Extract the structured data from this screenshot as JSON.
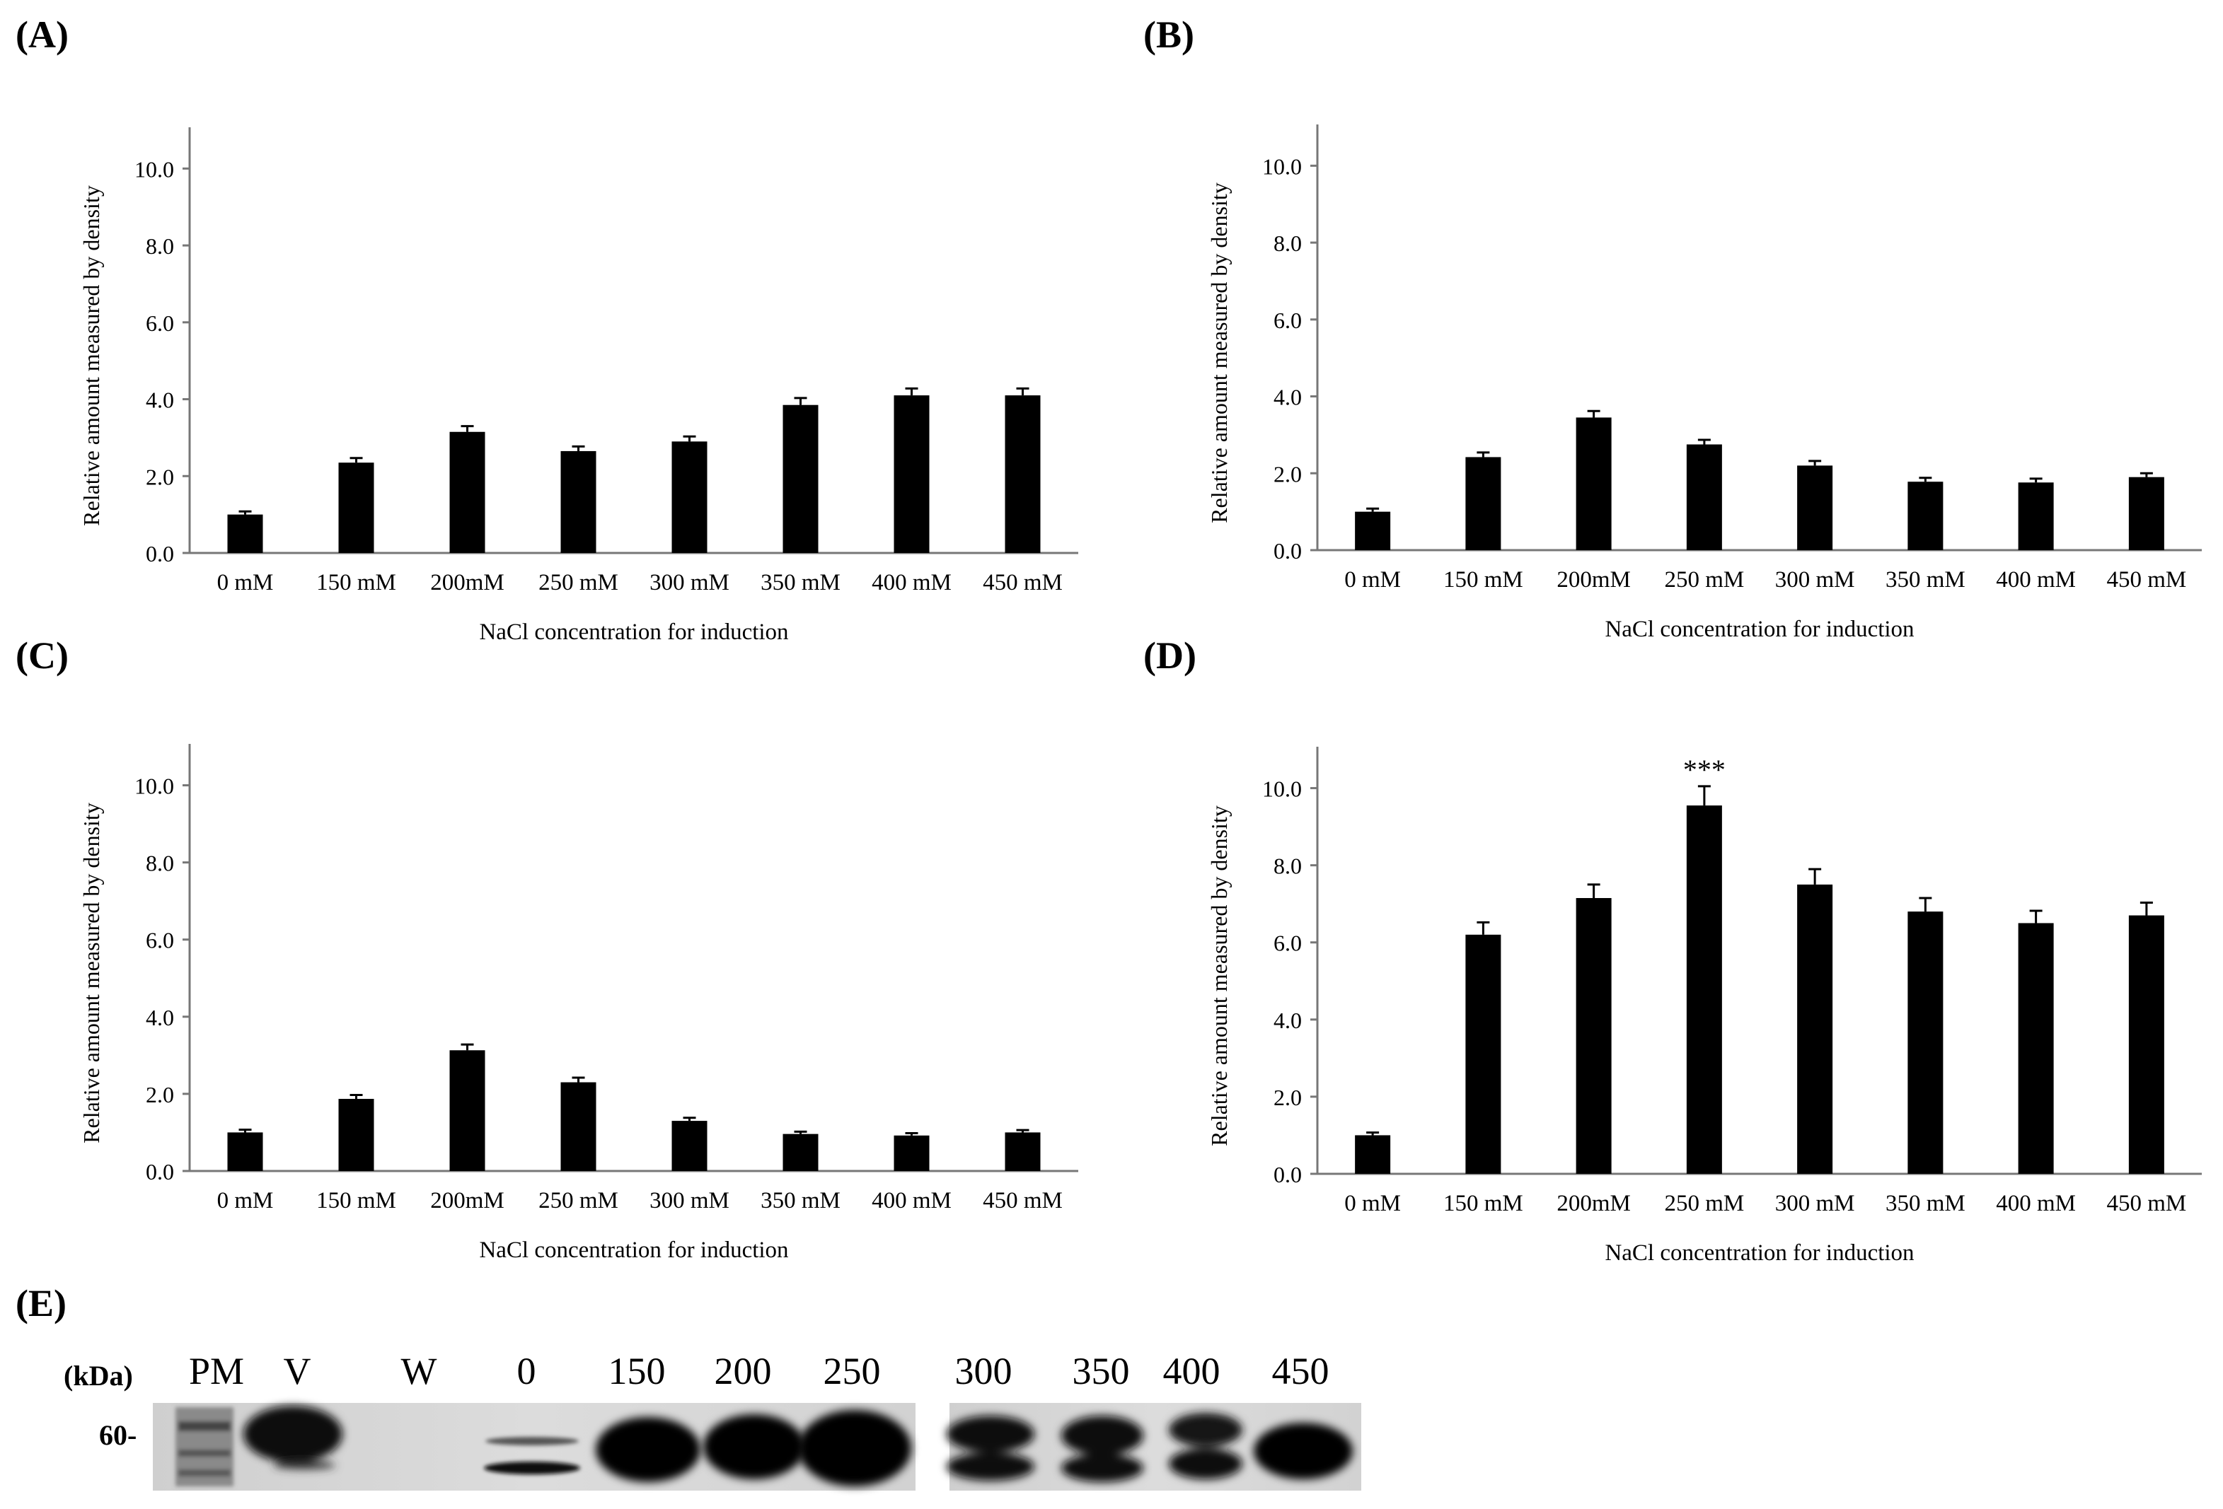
{
  "panels": [
    {
      "id": "A",
      "label": "(A)"
    },
    {
      "id": "B",
      "label": "(B)"
    },
    {
      "id": "C",
      "label": "(C)"
    },
    {
      "id": "D",
      "label": "(D)"
    },
    {
      "id": "E",
      "label": "(E)"
    }
  ],
  "chart_data": [
    {
      "panel": "(A)",
      "type": "bar",
      "categories": [
        "0 mM",
        "150 mM",
        "200mM",
        "250 mM",
        "300 mM",
        "350 mM",
        "400 mM",
        "450 mM"
      ],
      "values": [
        1.0,
        2.35,
        3.15,
        2.65,
        2.9,
        3.85,
        4.1,
        4.1
      ],
      "errors": [
        0.08,
        0.12,
        0.15,
        0.12,
        0.13,
        0.18,
        0.18,
        0.18
      ],
      "xlabel": "NaCl concentration for induction",
      "ylabel": "Relative amount  measured by density",
      "ylim": [
        0,
        11
      ],
      "yticks": [
        "0.0",
        "2.0",
        "4.0",
        "6.0",
        "8.0",
        "10.0"
      ],
      "annotations": []
    },
    {
      "panel": "(B)",
      "type": "bar",
      "categories": [
        "0 mM",
        "150 mM",
        "200mM",
        "250 mM",
        "300 mM",
        "350 mM",
        "400 mM",
        "450 mM"
      ],
      "values": [
        1.0,
        2.42,
        3.45,
        2.75,
        2.2,
        1.78,
        1.76,
        1.9
      ],
      "errors": [
        0.08,
        0.12,
        0.17,
        0.12,
        0.12,
        0.1,
        0.1,
        0.1
      ],
      "xlabel": "NaCl concentration for induction",
      "ylabel": "Relative amount  measured by density",
      "ylim": [
        0,
        11
      ],
      "yticks": [
        "0.0",
        "2.0",
        "4.0",
        "6.0",
        "8.0",
        "10.0"
      ],
      "annotations": []
    },
    {
      "panel": "(C)",
      "type": "bar",
      "categories": [
        "0 mM",
        "150 mM",
        "200mM",
        "250 mM",
        "300 mM",
        "350 mM",
        "400 mM",
        "450 mM"
      ],
      "values": [
        1.0,
        1.87,
        3.13,
        2.3,
        1.3,
        0.96,
        0.92,
        1.0
      ],
      "errors": [
        0.07,
        0.1,
        0.15,
        0.12,
        0.08,
        0.06,
        0.06,
        0.06
      ],
      "xlabel": "NaCl concentration for induction",
      "ylabel": "Relative amount  measured by density",
      "ylim": [
        0,
        11
      ],
      "yticks": [
        "0.0",
        "2.0",
        "4.0",
        "6.0",
        "8.0",
        "10.0"
      ],
      "annotations": []
    },
    {
      "panel": "(D)",
      "type": "bar",
      "categories": [
        "0 mM",
        "150 mM",
        "200mM",
        "250 mM",
        "300 mM",
        "350 mM",
        "400 mM",
        "450 mM"
      ],
      "values": [
        1.0,
        6.2,
        7.15,
        9.55,
        7.5,
        6.8,
        6.5,
        6.7
      ],
      "errors": [
        0.07,
        0.32,
        0.35,
        0.5,
        0.4,
        0.35,
        0.32,
        0.33
      ],
      "xlabel": "NaCl concentration for induction",
      "ylabel": "Relative amount  measured by density",
      "ylim": [
        0,
        11
      ],
      "yticks": [
        "0.0",
        "2.0",
        "4.0",
        "6.0",
        "8.0",
        "10.0"
      ],
      "annotations": [
        {
          "category": "250 mM",
          "text": "***"
        }
      ]
    }
  ],
  "western_blot": {
    "unit_label": "(kDa)",
    "marker_label": "60-",
    "lanes": [
      "PM",
      "V",
      "W",
      "0",
      "150",
      "200",
      "250",
      "300",
      "350",
      "400",
      "450"
    ]
  }
}
